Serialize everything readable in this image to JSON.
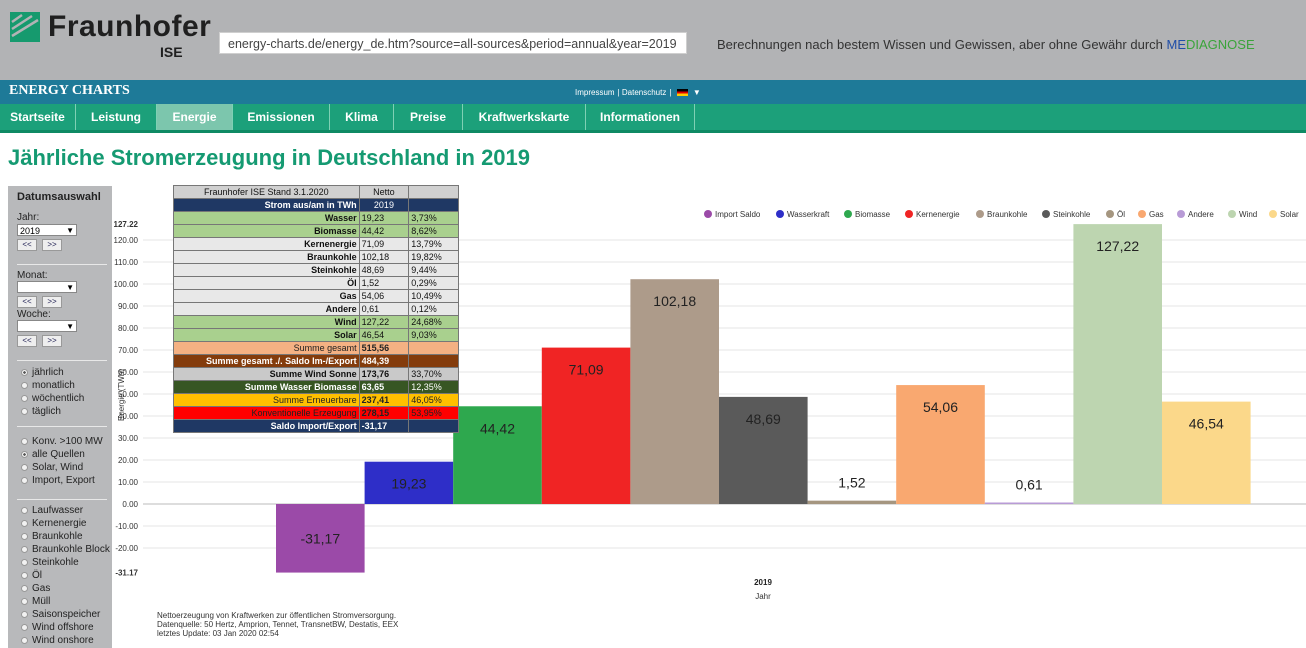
{
  "header": {
    "logo_text": "Fraunhofer",
    "logo_sub": "ISE",
    "url": "energy-charts.de/energy_de.htm?source=all-sources&period=annual&year=2019",
    "disclaimer_prefix": "Berechnungen nach bestem Wissen und Gewissen, aber ohne Gewähr durch ",
    "disclaimer_me": "ME",
    "disclaimer_dg": "DIAGNOSE",
    "brand": "ENERGY CHARTS",
    "impressum": "Impressum",
    "datenschutz": "Datenschutz",
    "lang_arrow": "▼"
  },
  "nav": [
    {
      "label": "Startseite"
    },
    {
      "label": "Leistung"
    },
    {
      "label": "Energie"
    },
    {
      "label": "Emissionen"
    },
    {
      "label": "Klima"
    },
    {
      "label": "Preise"
    },
    {
      "label": "Kraftwerkskarte"
    },
    {
      "label": "Informationen"
    }
  ],
  "nav_active": "Energie",
  "page_title": "Jährliche Stromerzeugung in Deutschland in 2019",
  "sidebar": {
    "title": "Datumsauswahl",
    "year_label": "Jahr:",
    "year_value": "2019",
    "month_label": "Monat:",
    "week_label": "Woche:",
    "prev": "<<",
    "next": ">>",
    "period_options": [
      {
        "label": "jährlich",
        "selected": true
      },
      {
        "label": "monatlich",
        "selected": false
      },
      {
        "label": "wöchentlich",
        "selected": false
      },
      {
        "label": "täglich",
        "selected": false
      }
    ],
    "source_options": [
      {
        "label": "Konv. >100 MW",
        "selected": false
      },
      {
        "label": "alle Quellen",
        "selected": true
      },
      {
        "label": "Solar, Wind",
        "selected": false
      },
      {
        "label": "Import, Export",
        "selected": false
      }
    ],
    "source_list": [
      "Laufwasser",
      "Kernenergie",
      "Braunkohle",
      "Braunkohle Block",
      "Steinkohle",
      "Öl",
      "Gas",
      "Müll",
      "Saisonspeicher",
      "Wind offshore",
      "Wind onshore"
    ]
  },
  "table": {
    "header": [
      "Fraunhofer ISE Stand 3.1.2020",
      "Netto"
    ],
    "subheader": [
      "Strom aus/am in TWh",
      "2019"
    ],
    "rows": [
      {
        "label": "Wasser",
        "value": "19,23",
        "pct": "3,73%",
        "bg": "#a9d08e"
      },
      {
        "label": "Biomasse",
        "value": "44,42",
        "pct": "8,62%",
        "bg": "#a9d08e"
      },
      {
        "label": "Kernenergie",
        "value": "71,09",
        "pct": "13,79%",
        "bg": "#e8e8e8"
      },
      {
        "label": "Braunkohle",
        "value": "102,18",
        "pct": "19,82%",
        "bg": "#e8e8e8"
      },
      {
        "label": "Steinkohle",
        "value": "48,69",
        "pct": "9,44%",
        "bg": "#e8e8e8"
      },
      {
        "label": "Öl",
        "value": "1,52",
        "pct": "0,29%",
        "bg": "#e8e8e8"
      },
      {
        "label": "Gas",
        "value": "54,06",
        "pct": "10,49%",
        "bg": "#e8e8e8"
      },
      {
        "label": "Andere",
        "value": "0,61",
        "pct": "0,12%",
        "bg": "#e8e8e8"
      },
      {
        "label": "Wind",
        "value": "127,22",
        "pct": "24,68%",
        "bg": "#a9d08e"
      },
      {
        "label": "Solar",
        "value": "46,54",
        "pct": "9,03%",
        "bg": "#a9d08e"
      }
    ],
    "sums": [
      {
        "label": "Summe gesamt",
        "value": "515,56",
        "pct": "",
        "bg": "#f4b183",
        "fg": "#222",
        "bold": false
      },
      {
        "label": "Summe gesamt ./. Saldo Im-/Export",
        "value": "484,39",
        "pct": "",
        "bg": "#843c0c",
        "fg": "#fff",
        "bold": true
      },
      {
        "label": "Summe Wind Sonne",
        "value": "173,76",
        "pct": "33,70%",
        "bg": "#c9c9c9",
        "fg": "#111",
        "bold": true
      },
      {
        "label": "Summe Wasser Biomasse",
        "value": "63,65",
        "pct": "12,35%",
        "bg": "#375623",
        "fg": "#fff",
        "bold": true
      },
      {
        "label": "Summe Erneuerbare",
        "value": "237,41",
        "pct": "46,05%",
        "bg": "#ffc000",
        "fg": "#222",
        "bold": false
      },
      {
        "label": "Konventionelle Erzeugung",
        "value": "278,15",
        "pct": "53,95%",
        "bg": "#ff0000",
        "fg": "#222",
        "bold": false
      },
      {
        "label": "Saldo Import/Export",
        "value": "-31,17",
        "pct": "",
        "bg": "#1f3864",
        "fg": "#fff",
        "bold": true
      }
    ]
  },
  "chart_data": {
    "type": "bar",
    "categories": [
      "Import Saldo",
      "Wasserkraft",
      "Biomasse",
      "Kernenergie",
      "Braunkohle",
      "Steinkohle",
      "Öl",
      "Gas",
      "Andere",
      "Wind",
      "Solar"
    ],
    "values": [
      -31.17,
      19.23,
      44.42,
      71.09,
      102.18,
      48.69,
      1.52,
      54.06,
      0.61,
      127.22,
      46.54
    ],
    "value_labels": [
      "-31,17",
      "19,23",
      "44,42",
      "71,09",
      "102,18",
      "48,69",
      "1,52",
      "54,06",
      "0,61",
      "127,22",
      "46,54"
    ],
    "colors": [
      "#9b4aa8",
      "#2e2ec8",
      "#2ea84e",
      "#f02424",
      "#ad9b8a",
      "#5a5a5a",
      "#a59680",
      "#f9a870",
      "#b89bd6",
      "#bdd5b0",
      "#fbd88a"
    ],
    "x_category": "2019",
    "xlabel": "Jahr",
    "ylabel": "Energie (TWh)",
    "ylim": [
      -31.17,
      127.22
    ],
    "yticks": [
      -20,
      -10,
      0,
      10,
      20,
      30,
      40,
      50,
      60,
      70,
      80,
      90,
      100,
      110,
      120
    ],
    "ytick_labels": [
      "-20.00",
      "-10.00",
      "0.00",
      "10.00",
      "20.00",
      "30.00",
      "40.00",
      "50.00",
      "60.00",
      "70.00",
      "80.00",
      "90.00",
      "100.00",
      "110.00",
      "120.00"
    ],
    "ymin_label": "-31.17",
    "ymax_label": "127.22",
    "grid": true,
    "legend_position": "top-right"
  },
  "footnote": [
    "Nettoerzeugung von Kraftwerken zur öffentlichen Stromversorgung.",
    "Datenquelle: 50 Hertz, Amprion, Tennet, TransnetBW, Destatis, EEX",
    "letztes Update: 03 Jan 2020 02:54"
  ]
}
